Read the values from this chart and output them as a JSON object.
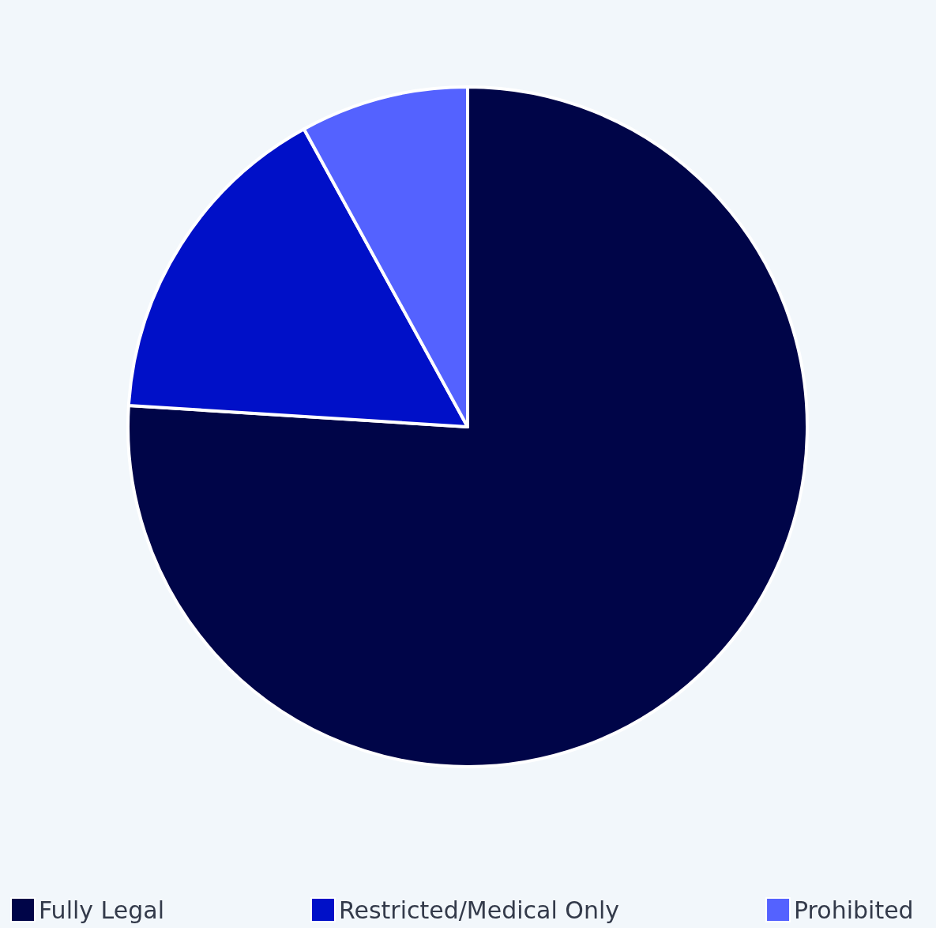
{
  "chart_data": {
    "type": "pie",
    "categories": [
      "Fully Legal",
      "Restricted/Medical Only",
      "Prohibited"
    ],
    "values": [
      76,
      16,
      8
    ],
    "colors": [
      "#000548",
      "#0010c8",
      "#5462ff"
    ],
    "legend": "bottom"
  }
}
